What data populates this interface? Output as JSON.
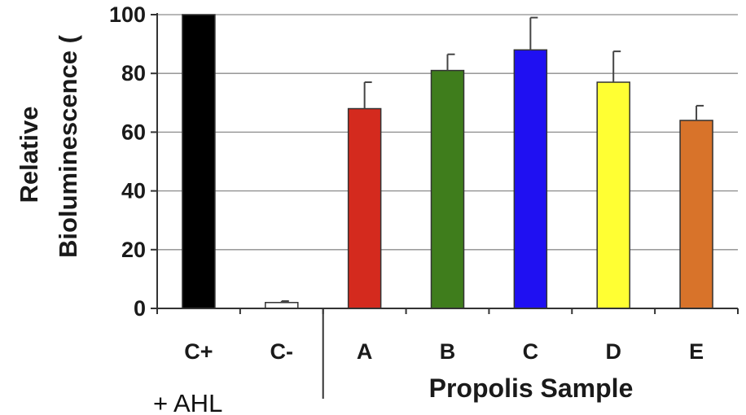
{
  "chart_data": {
    "type": "bar",
    "ylabel_line1": "Relative",
    "ylabel_line2": "Bioluminescence (",
    "xlabel": "Propolis Sample",
    "group_note": "+ AHL",
    "ylim": [
      0,
      100
    ],
    "yticks": [
      0,
      20,
      40,
      60,
      80,
      100
    ],
    "grid": true,
    "categories": [
      "C+",
      "C-",
      "A",
      "B",
      "C",
      "D",
      "E"
    ],
    "values": [
      100,
      2,
      68,
      81,
      88,
      77,
      64
    ],
    "errors": [
      0,
      0.5,
      9,
      5.5,
      11,
      10.5,
      5
    ],
    "colors": [
      "#000000",
      "#ffffff",
      "#d42a1e",
      "#3f7d1c",
      "#1f10f2",
      "#ffff33",
      "#d8732a"
    ]
  }
}
